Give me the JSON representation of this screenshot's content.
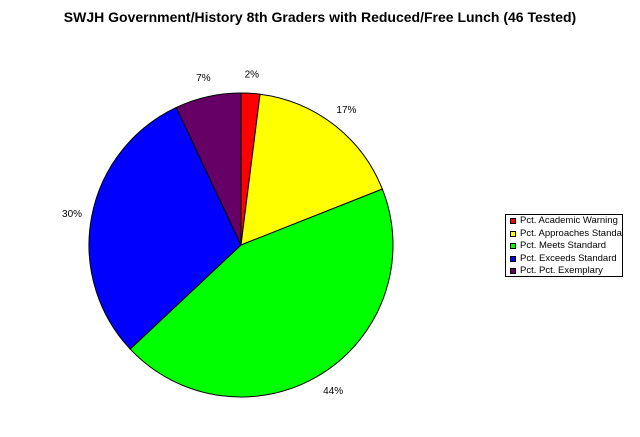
{
  "chart_data": {
    "type": "pie",
    "title": "SWJH Government/History 8th Graders with Reduced/Free Lunch (46 Tested)",
    "categories": [
      "Pct. Academic Warning",
      "Pct. Approaches Standard",
      "Pct. Meets Standard",
      "Pct. Exceeds Standard",
      "Pct. Pct. Exemplary"
    ],
    "values": [
      2,
      17,
      44,
      30,
      7
    ],
    "labels": [
      "2%",
      "17%",
      "44%",
      "30%",
      "7%"
    ],
    "colors": [
      "#ff0000",
      "#ffff00",
      "#00ff00",
      "#0000ff",
      "#660066"
    ],
    "legend_position": "right"
  }
}
